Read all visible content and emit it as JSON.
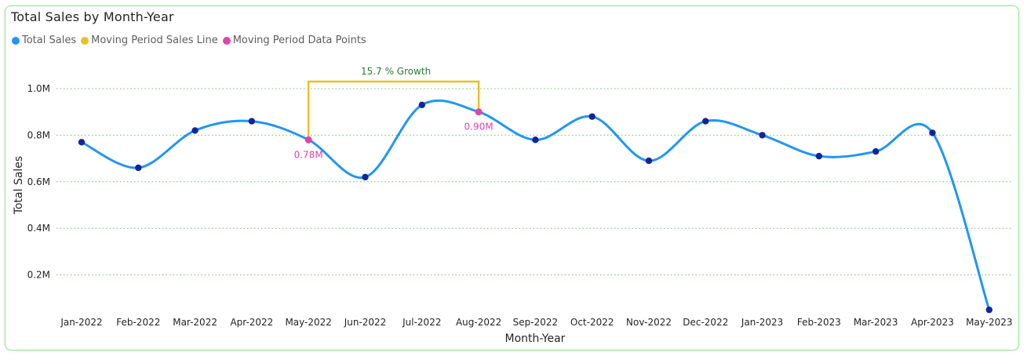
{
  "chart_data": {
    "type": "line",
    "title": "Total Sales by Month-Year",
    "xlabel": "Month-Year",
    "ylabel": "Total Sales",
    "categories": [
      "Jan-2022",
      "Feb-2022",
      "Mar-2022",
      "Apr-2022",
      "May-2022",
      "Jun-2022",
      "Jul-2022",
      "Aug-2022",
      "Sep-2022",
      "Oct-2022",
      "Nov-2022",
      "Dec-2022",
      "Jan-2023",
      "Feb-2023",
      "Mar-2023",
      "Apr-2023",
      "May-2023"
    ],
    "series": [
      {
        "name": "Total Sales",
        "color": "#2196f3",
        "point_color": "#12239e",
        "values": [
          0.77,
          0.66,
          0.82,
          0.86,
          0.78,
          0.62,
          0.93,
          0.9,
          0.78,
          0.88,
          0.69,
          0.86,
          0.8,
          0.71,
          0.73,
          0.81,
          0.05
        ]
      }
    ],
    "ylim": [
      0,
      1.1
    ],
    "yticks": [
      0.2,
      0.4,
      0.6,
      0.8,
      1.0
    ],
    "ytick_labels": [
      "0.2M",
      "0.4M",
      "0.6M",
      "0.8M",
      "1.0M"
    ],
    "grid": "horizontal-dotted",
    "legend_position": "top-left",
    "legend": [
      {
        "name": "Total Sales",
        "color": "#2196f3"
      },
      {
        "name": "Moving Period Sales Line",
        "color": "#e6c229"
      },
      {
        "name": "Moving Period Data Points",
        "color": "#e044a7"
      }
    ],
    "moving_period": {
      "start_index": 4,
      "end_index": 7,
      "start_label": "0.78M",
      "end_label": "0.90M",
      "growth_label": "15.7 % Growth",
      "line_color": "#e6c229",
      "point_color": "#e044a7",
      "growth_color": "#2e7d32"
    }
  }
}
